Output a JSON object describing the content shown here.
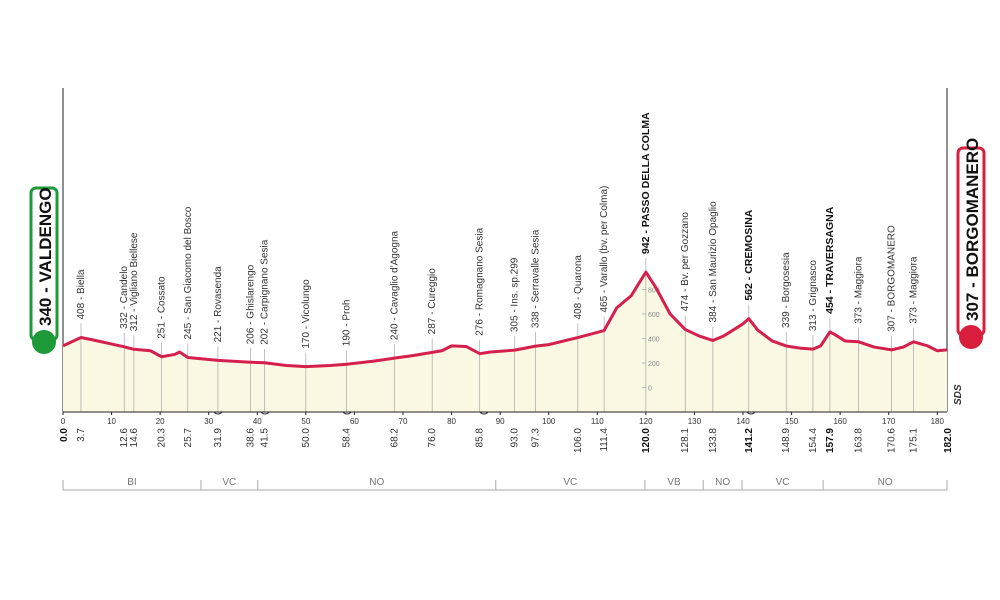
{
  "chart_data": {
    "type": "profile",
    "start": {
      "label": "340 - VALDENGO",
      "km": {
        "value": 0,
        "label": "0.0"
      },
      "color": "#1e9a3a"
    },
    "finish": {
      "label": "307 - BORGOMANERO",
      "km": {
        "value": 182,
        "label": "182.0"
      },
      "color": "#d81e3c"
    },
    "profile": {
      "color": "#d51f4c",
      "fill": "#fbf9e4",
      "x": [
        0,
        3.7,
        6,
        12.6,
        14.6,
        18,
        20.3,
        23,
        24,
        25.7,
        31.9,
        38.6,
        41.5,
        46,
        50,
        55,
        58.4,
        64,
        68.2,
        72,
        76,
        78,
        80,
        83,
        85.8,
        88,
        93,
        97.3,
        100,
        106,
        111.4,
        114,
        117,
        120,
        122,
        125,
        128.1,
        131,
        133.8,
        136,
        140,
        141.2,
        143,
        146,
        148.9,
        152,
        154.4,
        156,
        157.9,
        159,
        161,
        163.8,
        167,
        170.6,
        173,
        175.1,
        178,
        180,
        182
      ],
      "values": [
        340,
        408,
        390,
        332,
        312,
        300,
        251,
        270,
        290,
        245,
        221,
        206,
        202,
        180,
        170,
        180,
        190,
        215,
        240,
        260,
        287,
        300,
        340,
        335,
        276,
        290,
        305,
        338,
        350,
        408,
        465,
        650,
        750,
        942,
        820,
        600,
        474,
        420,
        384,
        420,
        520,
        562,
        470,
        380,
        339,
        320,
        313,
        340,
        454,
        430,
        380,
        373,
        330,
        307,
        330,
        373,
        340,
        300,
        307
      ]
    },
    "waypoints": {
      "x": [
        3.7,
        12.6,
        14.6,
        20.3,
        25.7,
        31.9,
        38.6,
        41.5,
        50,
        58.4,
        68.2,
        76,
        85.8,
        93,
        97.3,
        106,
        111.4,
        120,
        128.1,
        133.8,
        141.2,
        148.9,
        154.4,
        157.9,
        163.8,
        170.6,
        175.1
      ],
      "x_labels": [
        "3.7",
        "12.6",
        "14.6",
        "20.3",
        "25.7",
        "31.9",
        "38.6",
        "41.5",
        "50.0",
        "58.4",
        "68.2",
        "76.0",
        "85.8",
        "93.0",
        "97.3",
        "106.0",
        "111.4",
        "120.0",
        "128.1",
        "133.8",
        "141.2",
        "148.9",
        "154.4",
        "157.9",
        "163.8",
        "170.6",
        "175.1"
      ],
      "values": [
        408,
        332,
        312,
        251,
        245,
        221,
        206,
        202,
        170,
        190,
        240,
        287,
        276,
        305,
        338,
        408,
        465,
        942,
        474,
        384,
        562,
        339,
        313,
        454,
        373,
        307,
        373
      ],
      "value_labels": [
        "408 - Biella",
        "332 - Candelo",
        "312 - Vigliano Biellese",
        "251 - Cossato",
        "245 - San Giacomo del Bosco",
        "221 - Rovasenda",
        "206 - Ghislarengo",
        "202 - Carpignano Sesia",
        "170 - Vicolungo",
        "190 - Proh",
        "240 - Cavaglio d'Agogna",
        "287 - Cureggio",
        "276 - Romagnano Sesia",
        "305 - Ins. sp.299",
        "338 - Serravalle Sesia",
        "408 - Quarona",
        "465 - Varallo (bv. per Colma)",
        "942 - PASSO DELLA COLMA",
        "474 - Bv. per Gozzano",
        "384 - San Maurizio Opaglio",
        "562 - CREMOSINA",
        "339 - Borgosesia",
        "313 - Grignasco",
        "454 - TRAVERSAGNA",
        "373 - Maggiora",
        "307 - BORGOMANERO",
        "373 - Maggiora"
      ],
      "bold": [
        17,
        20,
        23
      ]
    },
    "regions": {
      "names": [
        "BI",
        "VC",
        "NO",
        "VC",
        "VB",
        "NO",
        "VC",
        "NO"
      ],
      "bounds": [
        0,
        28.4,
        40.1,
        89.1,
        119.8,
        131.8,
        139.8,
        156.5,
        182
      ]
    },
    "xlim": [
      0,
      182
    ],
    "xticks": [
      0,
      10,
      20,
      30,
      40,
      50,
      60,
      70,
      80,
      90,
      100,
      110,
      120,
      130,
      140,
      150,
      160,
      170,
      180
    ],
    "ylim": [
      -200,
      2600
    ],
    "yticks": [
      0,
      200,
      400,
      600,
      800
    ],
    "logo": "SDS"
  }
}
